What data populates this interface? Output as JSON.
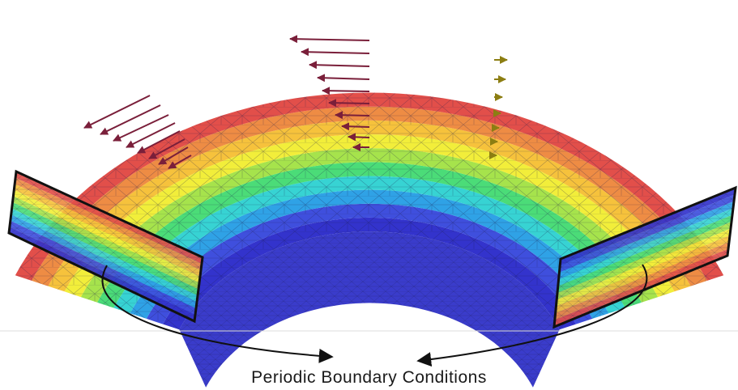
{
  "caption": "Periodic Boundary Conditions",
  "colors": {
    "bands_inner_to_outer": [
      "#3333cc",
      "#3f4fdd",
      "#2fa2e6",
      "#37d3d3",
      "#4bdc78",
      "#a6e34c",
      "#f2ee3a",
      "#f6c23c",
      "#ee8c44",
      "#e24f4a"
    ],
    "arrow_dark": "#7a1f3a",
    "arrow_olive": "#8c7e12",
    "edge": "#111111",
    "callout": "#111111"
  }
}
